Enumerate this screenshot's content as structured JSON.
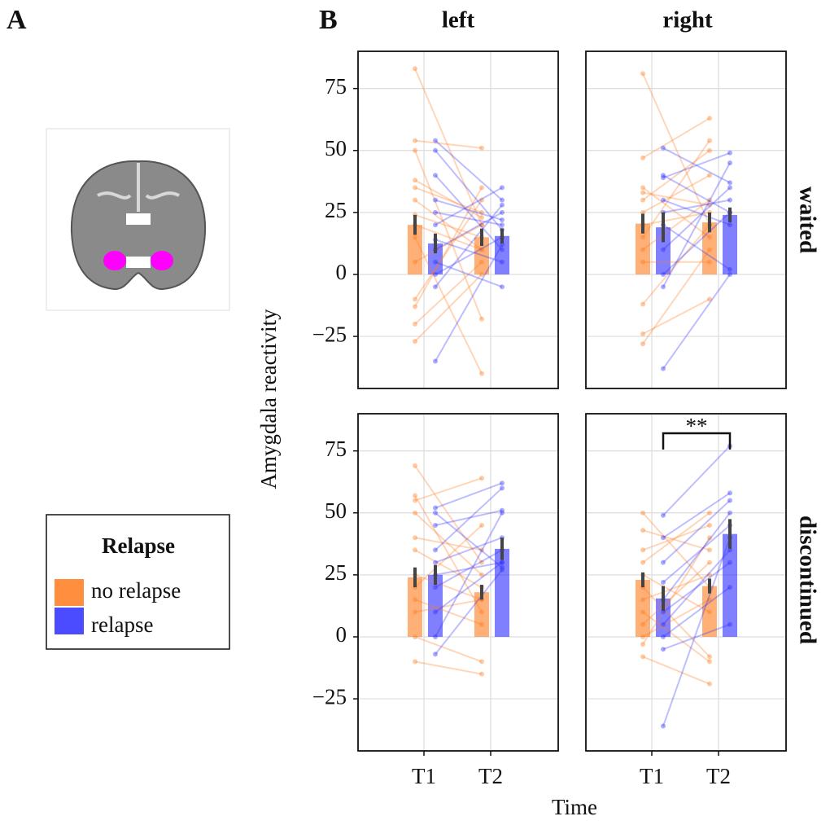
{
  "panel_labels": [
    "A",
    "B"
  ],
  "columns": [
    "left",
    "right"
  ],
  "rows": [
    "waited",
    "discontinued"
  ],
  "ylabel": "Amygdala reactivity",
  "xlabel": "Time",
  "legend_title": "Relapse",
  "categories": [
    "T1",
    "T2"
  ],
  "ylim": [
    -46,
    90
  ],
  "yticks": [
    {
      "value": -25,
      "label": "−25"
    },
    0,
    25,
    50,
    75
  ],
  "chart_data": [
    {
      "type": "bar",
      "series": [
        {
          "name": "no relapse",
          "color": "#ff7b1c",
          "values": [
            20,
            15
          ],
          "errors": [
            4,
            3.5
          ],
          "subjects": [
            [
              83,
              20
            ],
            [
              54,
              51
            ],
            [
              50,
              -18
            ],
            [
              38,
              23
            ],
            [
              35,
              25
            ],
            [
              30,
              10
            ],
            [
              24,
              15
            ],
            [
              20,
              10
            ],
            [
              15,
              -40
            ],
            [
              5,
              20
            ],
            [
              -10,
              30
            ],
            [
              -13,
              35
            ],
            [
              -20,
              5
            ],
            [
              -27,
              0
            ]
          ]
        },
        {
          "name": "relapse",
          "color": "#2b2bff",
          "values": [
            12.5,
            15.5
          ],
          "errors": [
            4,
            3
          ],
          "subjects": [
            [
              54,
              30
            ],
            [
              50,
              18
            ],
            [
              40,
              10
            ],
            [
              30,
              22
            ],
            [
              25,
              20
            ],
            [
              20,
              35
            ],
            [
              10,
              25
            ],
            [
              5,
              -5
            ],
            [
              0,
              15
            ],
            [
              -5,
              28
            ],
            [
              -35,
              12
            ],
            [
              14,
              5
            ]
          ]
        }
      ]
    },
    {
      "type": "bar",
      "series": [
        {
          "name": "no relapse",
          "color": "#ff7b1c",
          "values": [
            20.5,
            21
          ],
          "errors": [
            4,
            4
          ],
          "subjects": [
            [
              81,
              20
            ],
            [
              47,
              63
            ],
            [
              35,
              15
            ],
            [
              33,
              28
            ],
            [
              30,
              50
            ],
            [
              25,
              40
            ],
            [
              20,
              25
            ],
            [
              15,
              54
            ],
            [
              10,
              30
            ],
            [
              5,
              5
            ],
            [
              -12,
              20
            ],
            [
              -24,
              -10
            ],
            [
              -28,
              10
            ]
          ]
        },
        {
          "name": "relapse",
          "color": "#2b2bff",
          "values": [
            19,
            24
          ],
          "errors": [
            6,
            3
          ],
          "subjects": [
            [
              51,
              37
            ],
            [
              40,
              25
            ],
            [
              39,
              49
            ],
            [
              30,
              20
            ],
            [
              25,
              30
            ],
            [
              20,
              2
            ],
            [
              10,
              35
            ],
            [
              0,
              25
            ],
            [
              -5,
              45
            ],
            [
              -38,
              0
            ]
          ]
        }
      ]
    },
    {
      "type": "bar",
      "series": [
        {
          "name": "no relapse",
          "color": "#ff7b1c",
          "values": [
            24,
            18
          ],
          "errors": [
            4,
            3
          ],
          "subjects": [
            [
              69,
              30
            ],
            [
              57,
              10
            ],
            [
              55,
              64
            ],
            [
              50,
              25
            ],
            [
              40,
              35
            ],
            [
              35,
              20
            ],
            [
              25,
              15
            ],
            [
              20,
              45
            ],
            [
              15,
              5
            ],
            [
              10,
              15
            ],
            [
              0,
              -10
            ],
            [
              -10,
              -15
            ]
          ]
        },
        {
          "name": "relapse",
          "color": "#2b2bff",
          "values": [
            25,
            35.5
          ],
          "errors": [
            4,
            4.5
          ],
          "subjects": [
            [
              52,
              62
            ],
            [
              50,
              28
            ],
            [
              45,
              51
            ],
            [
              35,
              60
            ],
            [
              30,
              40
            ],
            [
              25,
              30
            ],
            [
              20,
              35
            ],
            [
              10,
              30
            ],
            [
              0,
              50
            ],
            [
              -7,
              27
            ]
          ]
        }
      ]
    },
    {
      "type": "bar",
      "annotation": "**",
      "series": [
        {
          "name": "no relapse",
          "color": "#ff7b1c",
          "values": [
            23,
            20.5
          ],
          "errors": [
            3,
            3
          ],
          "subjects": [
            [
              50,
              20
            ],
            [
              43,
              35
            ],
            [
              35,
              45
            ],
            [
              30,
              50
            ],
            [
              25,
              10
            ],
            [
              20,
              -8
            ],
            [
              15,
              25
            ],
            [
              10,
              -10
            ],
            [
              5,
              30
            ],
            [
              0,
              15
            ],
            [
              -8,
              -19
            ],
            [
              -3,
              40
            ]
          ]
        },
        {
          "name": "relapse",
          "color": "#2b2bff",
          "values": [
            15.5,
            41.5
          ],
          "errors": [
            5,
            6
          ],
          "subjects": [
            [
              49,
              77
            ],
            [
              40,
              58
            ],
            [
              30,
              55
            ],
            [
              22,
              45
            ],
            [
              15,
              50
            ],
            [
              10,
              30
            ],
            [
              5,
              35
            ],
            [
              0,
              20
            ],
            [
              -5,
              5
            ],
            [
              -36,
              40
            ]
          ]
        }
      ]
    }
  ]
}
